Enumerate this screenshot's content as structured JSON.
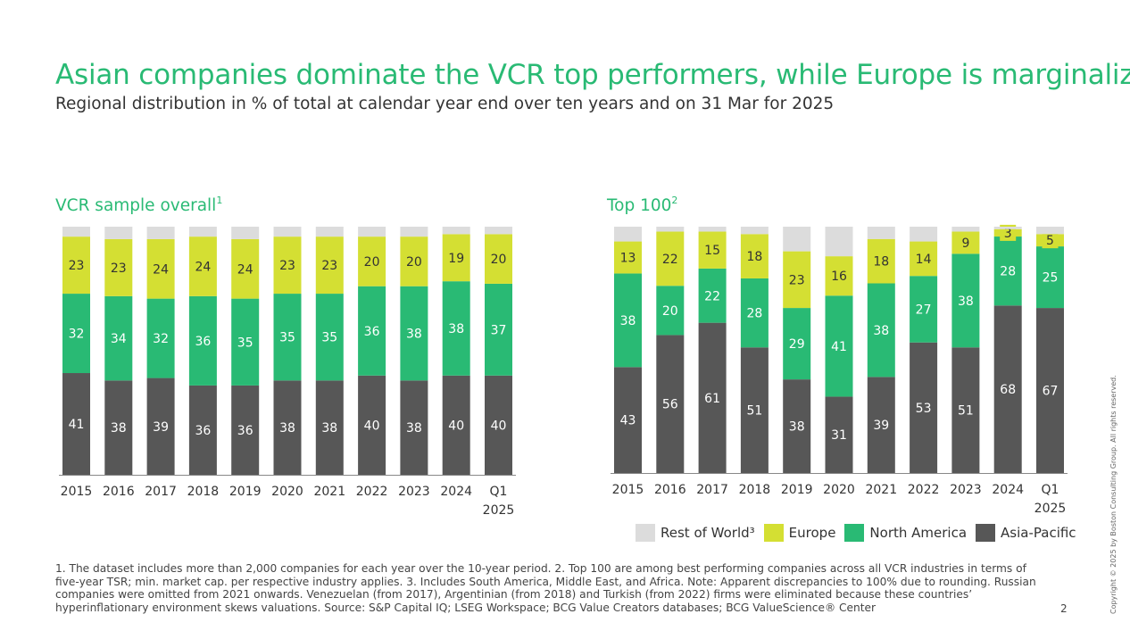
{
  "title": "Asian companies dominate the VCR top performers, while Europe is marginalized",
  "subtitle": "Regional distribution in % of total at calendar year end over ten years and on 31 Mar for 2025",
  "colors": {
    "asia_pacific": "#575757",
    "north_america": "#29ba74",
    "europe": "#d4df33",
    "rest_of_world": "#dcdcdc",
    "title": "#29ba74"
  },
  "legend": [
    {
      "label": "Rest of World³",
      "color": "#dcdcdc"
    },
    {
      "label": "Europe",
      "color": "#d4df33"
    },
    {
      "label": "North America",
      "color": "#29ba74"
    },
    {
      "label": "Asia-Pacific",
      "color": "#575757"
    }
  ],
  "footnote": "1. The dataset includes more than 2,000 companies for each year over the 10-year period.   2. Top 100 are among best performing companies across all VCR industries in terms of five-year TSR; min. market cap. per respective industry applies.   3. Includes South America, Middle East, and Africa.   Note: Apparent discrepancies to 100% due to rounding. Russian companies were omitted from 2021 onwards. Venezuelan (from 2017), Argentinian (from 2018) and Turkish (from 2022) firms were eliminated because these countries’ hyperinflationary environment skews valuations.   Source: S&P Capital IQ; LSEG Workspace; BCG Value Creators databases; BCG ValueScience® Center",
  "page_number": "2",
  "copyright": "Copyright © 2025 by Boston Consulting Group. All rights reserved.",
  "chart_data": [
    {
      "type": "bar",
      "stacked": true,
      "title": "VCR sample overall",
      "title_sup": "1",
      "categories": [
        "2015",
        "2016",
        "2017",
        "2018",
        "2019",
        "2020",
        "2021",
        "2022",
        "2023",
        "2024",
        "Q1 2025"
      ],
      "ylim": [
        0,
        100
      ],
      "series": [
        {
          "name": "Asia-Pacific",
          "values": [
            41,
            38,
            39,
            36,
            36,
            38,
            38,
            40,
            38,
            40,
            40
          ]
        },
        {
          "name": "North America",
          "values": [
            32,
            34,
            32,
            36,
            35,
            35,
            35,
            36,
            38,
            38,
            37
          ]
        },
        {
          "name": "Europe",
          "values": [
            23,
            23,
            24,
            24,
            24,
            23,
            23,
            20,
            20,
            19,
            20
          ]
        },
        {
          "name": "Rest of World",
          "values": [
            4,
            5,
            5,
            4,
            5,
            4,
            4,
            4,
            4,
            3,
            3
          ]
        }
      ]
    },
    {
      "type": "bar",
      "stacked": true,
      "title": "Top 100",
      "title_sup": "2",
      "categories": [
        "2015",
        "2016",
        "2017",
        "2018",
        "2019",
        "2020",
        "2021",
        "2022",
        "2023",
        "2024",
        "Q1 2025"
      ],
      "ylim": [
        0,
        100
      ],
      "series": [
        {
          "name": "Asia-Pacific",
          "values": [
            43,
            56,
            61,
            51,
            38,
            31,
            39,
            53,
            51,
            68,
            67
          ]
        },
        {
          "name": "North America",
          "values": [
            38,
            20,
            22,
            28,
            29,
            41,
            38,
            27,
            38,
            28,
            25
          ]
        },
        {
          "name": "Europe",
          "values": [
            13,
            22,
            15,
            18,
            23,
            16,
            18,
            14,
            9,
            3,
            5
          ]
        },
        {
          "name": "Rest of World",
          "values": [
            6,
            2,
            2,
            3,
            10,
            12,
            5,
            6,
            2,
            1,
            3
          ]
        }
      ]
    }
  ]
}
